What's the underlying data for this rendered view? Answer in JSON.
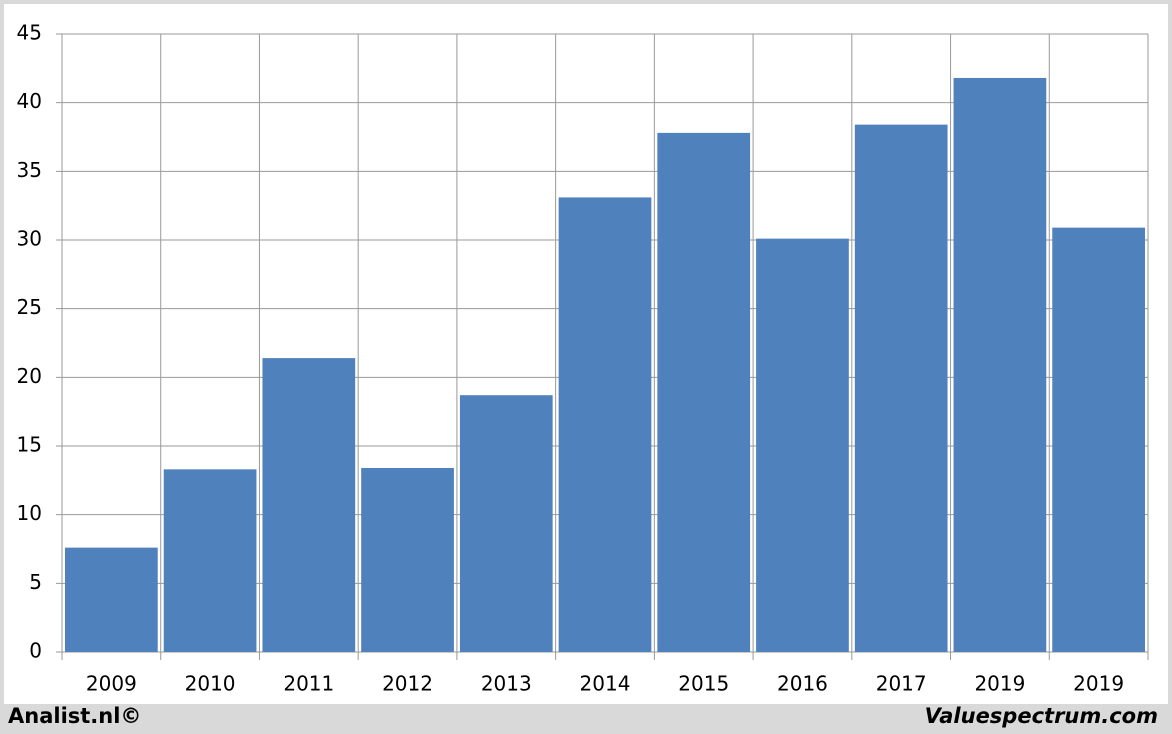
{
  "chart_data": {
    "type": "bar",
    "categories": [
      "2009",
      "2010",
      "2011",
      "2012",
      "2013",
      "2014",
      "2015",
      "2016",
      "2017",
      "2019",
      "2019"
    ],
    "values": [
      7.6,
      13.3,
      21.4,
      13.4,
      18.7,
      33.1,
      37.8,
      30.1,
      38.4,
      41.8,
      30.9
    ],
    "color": "#4f81bd",
    "ylim": [
      0,
      45
    ],
    "yticks": [
      0,
      5,
      10,
      15,
      20,
      25,
      30,
      35,
      40,
      45
    ],
    "grid": true,
    "annotations": [
      "Analist.nl©",
      "Valuespectrum.com"
    ]
  }
}
